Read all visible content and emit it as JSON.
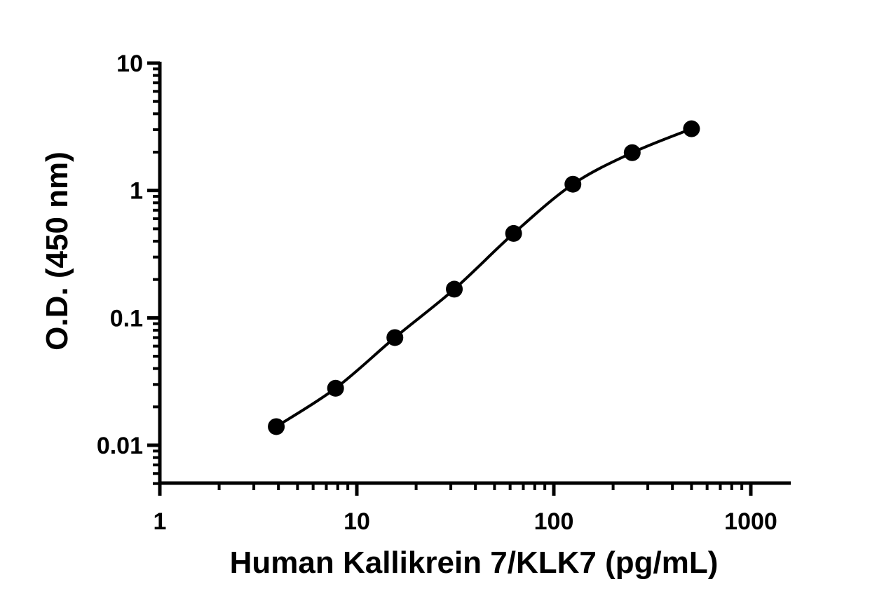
{
  "chart_data": {
    "type": "scatter",
    "xlabel": "Human Kallikrein 7/KLK7 (pg/mL)",
    "ylabel": "O.D. (450 nm)",
    "x_scale": "log",
    "y_scale": "log",
    "xlim": [
      1,
      1500
    ],
    "ylim": [
      0.005,
      10
    ],
    "x_ticks": [
      1,
      10,
      100,
      1000
    ],
    "x_tick_labels": [
      "1",
      "10",
      "100",
      "1000"
    ],
    "y_ticks": [
      0.01,
      0.1,
      1,
      10
    ],
    "y_tick_labels": [
      "0.01",
      "0.1",
      "1",
      "10"
    ],
    "grid": false,
    "legend": "none",
    "series": [
      {
        "x": [
          3.9,
          7.8,
          15.6,
          31.25,
          62.5,
          125,
          250,
          500
        ],
        "y": [
          0.014,
          0.028,
          0.07,
          0.168,
          0.46,
          1.12,
          1.98,
          3.05
        ],
        "marker": "circle",
        "fit": "4PL curve",
        "color": "#000000"
      }
    ]
  }
}
